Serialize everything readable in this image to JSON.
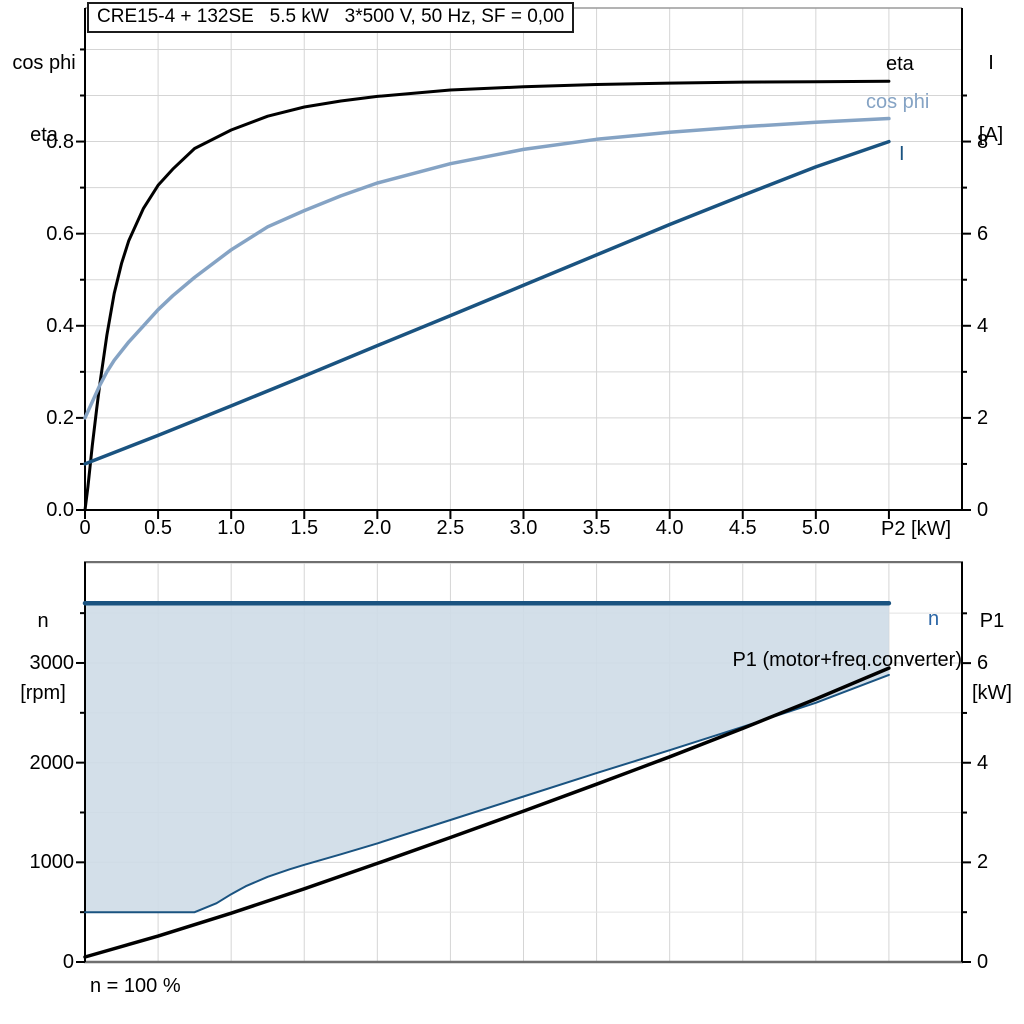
{
  "title_box": {
    "text": "CRE15-4 + 132SE   5.5 kW   3*500 V, 50 Hz, SF = 0,00"
  },
  "footnote": {
    "text": "n = 100 %"
  },
  "corner_labels": {
    "top_left": [
      "cos phi",
      "eta"
    ],
    "top_right": [
      "I",
      "[A]"
    ],
    "bottom_left": [
      "n",
      "[rpm]"
    ],
    "bottom_right": [
      "P1",
      "[kW]"
    ]
  },
  "colors": {
    "black": "#000000",
    "dark_blue": "#1A5380",
    "light_blue": "#85A3C4",
    "n_label_blue": "#2A65A5",
    "fill_blue": "rgba(206,219,231,0.9)",
    "grid": "#D5D5D5",
    "grid_minor": "#E2E2E2",
    "frame_gray": "#6F6F6F",
    "top_edge_gray": "#9A9A9A"
  },
  "chart_data": [
    {
      "type": "line",
      "title": "CRE15-4 + 132SE   5.5 kW   3*500 V, 50 Hz, SF = 0,00",
      "xlabel": "P2 [kW]",
      "x_axis_end_label": "P2 [kW]",
      "x_range": [
        0,
        6.0
      ],
      "x_grid_step": 0.5,
      "x_tick_labels": [
        "0",
        "0.5",
        "1.0",
        "1.5",
        "2.0",
        "2.5",
        "3.0",
        "3.5",
        "4.0",
        "4.5",
        "5.0"
      ],
      "x_tick_values": [
        0,
        0.5,
        1.0,
        1.5,
        2.0,
        2.5,
        3.0,
        3.5,
        4.0,
        4.5,
        5.0
      ],
      "left_axis": {
        "label": "cos phi / eta",
        "range": [
          0,
          1.09
        ],
        "grid_step": 0.1,
        "tick_values": [
          0.0,
          0.2,
          0.4,
          0.6,
          0.8
        ],
        "tick_labels": [
          "0.0",
          "0.2",
          "0.4",
          "0.6",
          "0.8"
        ],
        "minor_tick_values": [
          0.1,
          0.3,
          0.5,
          0.7,
          0.9,
          1.0
        ]
      },
      "right_axis": {
        "label": "I [A]",
        "range": [
          0,
          10.9
        ],
        "tick_values": [
          0,
          2,
          4,
          6,
          8
        ],
        "tick_labels": [
          "0",
          "2",
          "4",
          "6",
          "8"
        ],
        "minor_tick_values": [
          1,
          3,
          5,
          7,
          9
        ]
      },
      "legend_position": "right-inline",
      "grid": true,
      "series": [
        {
          "name": "eta",
          "label": "eta",
          "axis": "left",
          "color": "#000000",
          "width": 3,
          "x": [
            0,
            0.02,
            0.05,
            0.08,
            0.1,
            0.15,
            0.2,
            0.25,
            0.3,
            0.4,
            0.5,
            0.6,
            0.75,
            1.0,
            1.25,
            1.5,
            1.75,
            2.0,
            2.5,
            3.0,
            3.5,
            4.0,
            4.5,
            5.0,
            5.5
          ],
          "y": [
            0,
            0.05,
            0.14,
            0.22,
            0.27,
            0.38,
            0.47,
            0.535,
            0.585,
            0.655,
            0.705,
            0.74,
            0.785,
            0.825,
            0.855,
            0.875,
            0.888,
            0.898,
            0.912,
            0.919,
            0.924,
            0.927,
            0.929,
            0.93,
            0.931
          ]
        },
        {
          "name": "cos phi",
          "label": "cos phi",
          "axis": "left",
          "color": "#85A3C4",
          "width": 3.5,
          "x": [
            0,
            0.05,
            0.1,
            0.15,
            0.2,
            0.3,
            0.4,
            0.5,
            0.6,
            0.75,
            1.0,
            1.25,
            1.5,
            1.75,
            2.0,
            2.5,
            3.0,
            3.5,
            4.0,
            4.5,
            5.0,
            5.5
          ],
          "y": [
            0.2,
            0.235,
            0.27,
            0.3,
            0.325,
            0.365,
            0.4,
            0.435,
            0.465,
            0.505,
            0.565,
            0.615,
            0.65,
            0.682,
            0.71,
            0.752,
            0.783,
            0.805,
            0.82,
            0.832,
            0.842,
            0.85
          ]
        },
        {
          "name": "I",
          "label": "I",
          "axis": "right",
          "color": "#1A5380",
          "width": 3.5,
          "x": [
            0,
            0.5,
            1.0,
            1.5,
            2.0,
            2.5,
            3.0,
            3.5,
            4.0,
            4.5,
            5.0,
            5.5
          ],
          "y": [
            1.0,
            1.62,
            2.26,
            2.91,
            3.57,
            4.22,
            4.88,
            5.54,
            6.2,
            6.83,
            7.45,
            8.0
          ]
        }
      ]
    },
    {
      "type": "line",
      "title": "",
      "xlabel": "",
      "x_range": [
        0,
        6.0
      ],
      "x_grid_step": 0.5,
      "left_axis": {
        "label": "n [rpm]",
        "range": [
          0,
          4013
        ],
        "grid_step": 500,
        "tick_values": [
          0,
          1000,
          2000,
          3000
        ],
        "tick_labels": [
          "0",
          "1000",
          "2000",
          "3000"
        ],
        "minor_tick_values": [
          500,
          1500,
          2500,
          3500
        ]
      },
      "right_axis": {
        "label": "P1 [kW]",
        "range": [
          0,
          8.03
        ],
        "tick_values": [
          0,
          2,
          4,
          6
        ],
        "tick_labels": [
          "0",
          "2",
          "4",
          "6"
        ],
        "minor_tick_values": [
          1,
          3,
          5,
          7
        ]
      },
      "grid": true,
      "footnote": "n = 100 %",
      "series": [
        {
          "name": "n max (n = 100 %)",
          "label": "n",
          "axis": "left",
          "color": "#1A5380",
          "width": 4.5,
          "x": [
            0,
            5.5
          ],
          "y": [
            3600,
            3600
          ]
        },
        {
          "name": "n lower boundary",
          "label": "",
          "axis": "left",
          "color": "#1A5380",
          "width": 2,
          "x": [
            0,
            0.75,
            0.9,
            1.0,
            1.1,
            1.25,
            1.4,
            1.5,
            1.75,
            2.0,
            2.5,
            3.0,
            3.5,
            4.0,
            4.5,
            5.0,
            5.5
          ],
          "y": [
            500,
            500,
            590,
            680,
            760,
            855,
            930,
            975,
            1080,
            1190,
            1425,
            1660,
            1895,
            2125,
            2360,
            2600,
            2880
          ]
        },
        {
          "name": "P1 (motor+freq.converter)",
          "label": "P1 (motor+freq.converter)",
          "axis": "right",
          "color": "#000000",
          "width": 3.5,
          "x": [
            0,
            0.5,
            1.0,
            1.5,
            2.0,
            2.5,
            3.0,
            3.5,
            4.0,
            4.5,
            5.0,
            5.5
          ],
          "y": [
            0.1,
            0.52,
            0.98,
            1.47,
            1.98,
            2.5,
            3.03,
            3.57,
            4.12,
            4.69,
            5.28,
            5.9
          ]
        }
      ],
      "fill_area": {
        "between": [
          "n max (n = 100 %)",
          "n lower boundary"
        ],
        "color": "rgba(206,219,231,0.9)"
      }
    }
  ]
}
